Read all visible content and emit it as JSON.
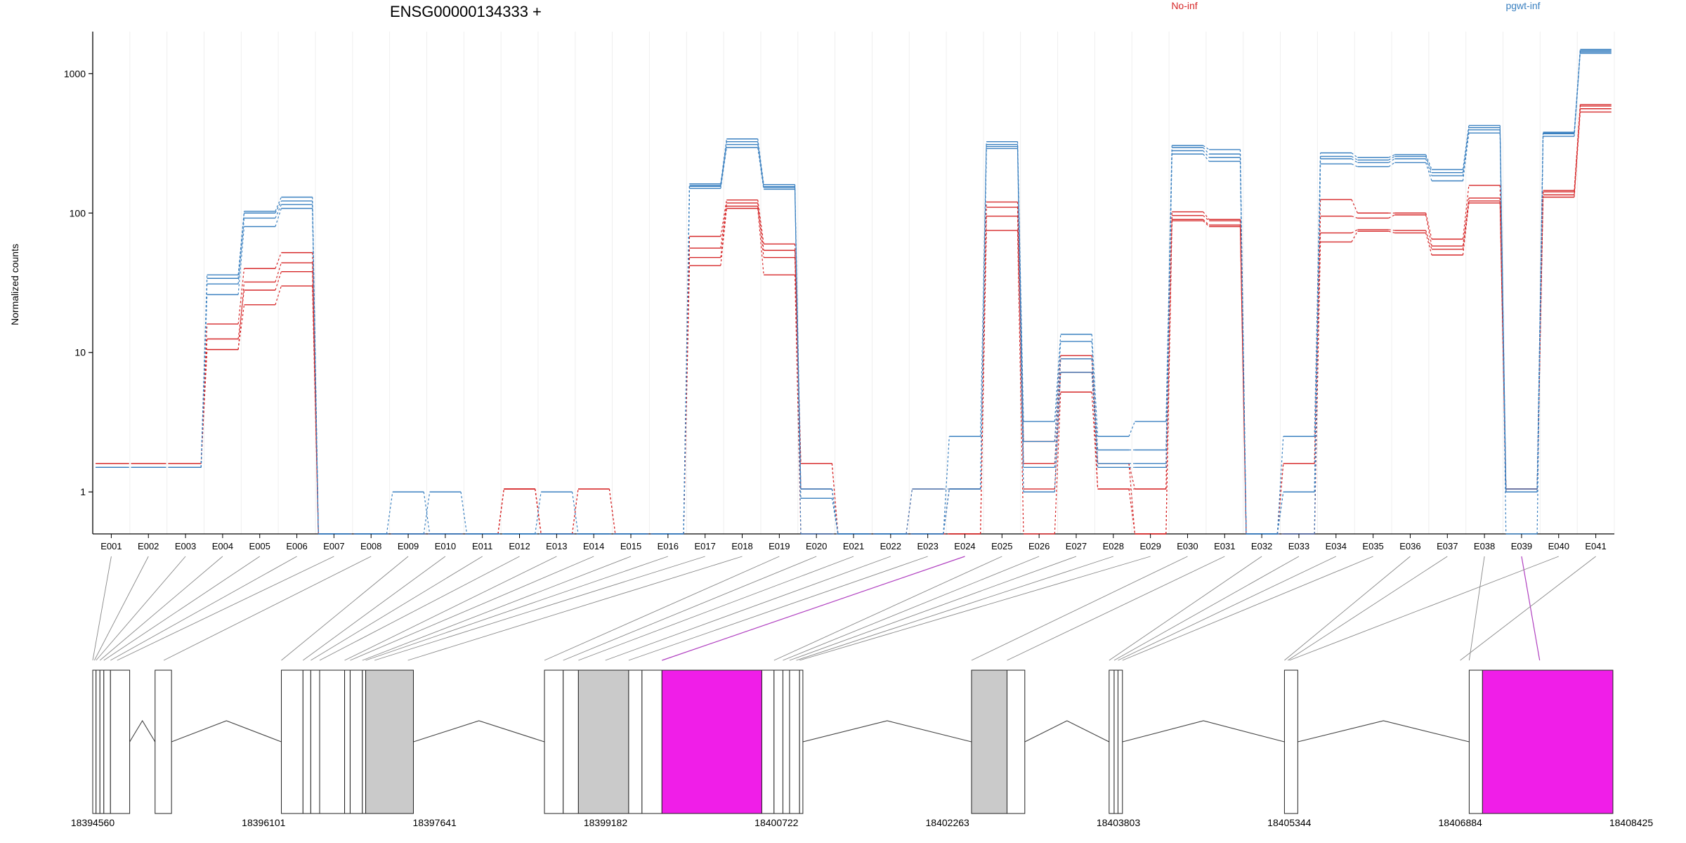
{
  "chart_data": {
    "type": "line",
    "title": "ENSG00000134333 +",
    "ylabel": "Normalized counts",
    "y_scale": "log",
    "y_ticks": [
      1,
      10,
      100,
      1000
    ],
    "ylim": [
      0.5,
      2000
    ],
    "legend_placement": "top",
    "categories": [
      "E001",
      "E002",
      "E003",
      "E004",
      "E005",
      "E006",
      "E007",
      "E008",
      "E009",
      "E010",
      "E011",
      "E012",
      "E013",
      "E014",
      "E015",
      "E016",
      "E017",
      "E018",
      "E019",
      "E020",
      "E021",
      "E022",
      "E023",
      "E024",
      "E025",
      "E026",
      "E027",
      "E028",
      "E029",
      "E030",
      "E031",
      "E032",
      "E033",
      "E034",
      "E035",
      "E036",
      "E037",
      "E038",
      "E039",
      "E040",
      "E041"
    ],
    "groups": [
      {
        "name": "No-inf",
        "color": "#d62728"
      },
      {
        "name": "pgwt-inf",
        "color": "#3a80c0"
      }
    ],
    "series": [
      {
        "group": "No-inf",
        "values": [
          1.6,
          1.6,
          1.6,
          10.5,
          22,
          30,
          0.5,
          0.5,
          0.5,
          0.5,
          0.5,
          1.05,
          0.5,
          0.5,
          0.5,
          0.5,
          42,
          108,
          36,
          0.5,
          0.5,
          0.5,
          0.5,
          0.5,
          75,
          0.5,
          5.2,
          1.05,
          0.5,
          88,
          80,
          0.5,
          0.5,
          62,
          74,
          72,
          50,
          118,
          1.0,
          130,
          530
        ]
      },
      {
        "group": "No-inf",
        "values": [
          1.6,
          1.6,
          1.6,
          12.5,
          28,
          38,
          0.5,
          0.5,
          0.5,
          0.5,
          0.5,
          1.05,
          0.5,
          0.5,
          0.5,
          0.5,
          48,
          112,
          48,
          1.6,
          0.5,
          0.5,
          0.5,
          0.5,
          95,
          1.05,
          7.2,
          1.6,
          0.5,
          90,
          82,
          0.5,
          0.5,
          72,
          76,
          75,
          55,
          122,
          1.05,
          135,
          560
        ]
      },
      {
        "group": "No-inf",
        "values": [
          1.6,
          1.6,
          1.6,
          10.5,
          32,
          44,
          0.5,
          0.5,
          0.5,
          0.5,
          0.5,
          1.05,
          0.5,
          1.05,
          0.5,
          0.5,
          56,
          118,
          54,
          1.05,
          0.5,
          0.5,
          1.05,
          1.05,
          110,
          1.6,
          9.0,
          1.05,
          1.05,
          96,
          88,
          0.5,
          1.6,
          95,
          92,
          97,
          58,
          128,
          1.05,
          142,
          585
        ]
      },
      {
        "group": "No-inf",
        "values": [
          1.6,
          1.6,
          1.6,
          16,
          40,
          52,
          0.5,
          0.5,
          0.5,
          0.5,
          0.5,
          1.05,
          0.5,
          1.05,
          0.5,
          0.5,
          68,
          124,
          60,
          1.6,
          0.5,
          0.5,
          0.5,
          1.05,
          120,
          2.3,
          9.5,
          1.6,
          1.05,
          102,
          90,
          0.5,
          1.6,
          125,
          100,
          100,
          65,
          158,
          1.05,
          145,
          600
        ]
      },
      {
        "group": "pgwt-inf",
        "values": [
          1.5,
          1.5,
          1.5,
          26,
          80,
          108,
          0.5,
          0.5,
          0.5,
          0.5,
          0.5,
          0.5,
          0.5,
          0.5,
          0.5,
          0.5,
          150,
          295,
          148,
          1.05,
          0.5,
          0.5,
          0.5,
          1.05,
          290,
          1.0,
          7.2,
          1.5,
          1.5,
          265,
          235,
          0.5,
          0.5,
          225,
          215,
          230,
          170,
          375,
          0.5,
          355,
          1400
        ]
      },
      {
        "group": "pgwt-inf",
        "values": [
          1.5,
          1.5,
          1.5,
          31,
          92,
          115,
          0.5,
          0.5,
          0.5,
          1.0,
          0.5,
          0.5,
          1.0,
          0.5,
          0.5,
          0.5,
          155,
          310,
          152,
          0.9,
          0.5,
          0.5,
          0.5,
          1.05,
          300,
          1.5,
          9.0,
          2.0,
          2.0,
          280,
          250,
          0.5,
          1.0,
          245,
          230,
          245,
          185,
          395,
          1.0,
          370,
          1430
        ]
      },
      {
        "group": "pgwt-inf",
        "values": [
          1.5,
          1.5,
          1.5,
          34,
          100,
          122,
          0.5,
          0.5,
          1.0,
          0.5,
          0.5,
          0.5,
          0.5,
          0.5,
          0.5,
          0.5,
          158,
          325,
          155,
          0.5,
          0.5,
          0.5,
          1.05,
          1.05,
          310,
          2.3,
          12.0,
          1.6,
          1.6,
          295,
          265,
          0.5,
          1.0,
          255,
          240,
          255,
          195,
          410,
          1.0,
          375,
          1460
        ]
      },
      {
        "group": "pgwt-inf",
        "values": [
          1.5,
          1.5,
          1.5,
          36,
          103,
          130,
          0.5,
          0.5,
          0.5,
          0.5,
          0.5,
          0.5,
          0.5,
          0.5,
          0.5,
          0.5,
          162,
          340,
          160,
          1.05,
          0.5,
          0.5,
          0.5,
          2.5,
          325,
          3.2,
          13.5,
          2.5,
          3.2,
          305,
          285,
          0.5,
          2.5,
          270,
          250,
          262,
          205,
          425,
          1.05,
          380,
          1490
        ]
      }
    ],
    "gene_model": {
      "coordinate_ticks": [
        18394560,
        18396101,
        18397641,
        18399182,
        18400722,
        18402263,
        18403803,
        18405344,
        18406884,
        18408425
      ],
      "exons": [
        {
          "start": 18394560,
          "end": 18394590,
          "highlight": false
        },
        {
          "start": 18394590,
          "end": 18394625,
          "highlight": false
        },
        {
          "start": 18394625,
          "end": 18394660,
          "highlight": false
        },
        {
          "start": 18394660,
          "end": 18394720,
          "highlight": false
        },
        {
          "start": 18394720,
          "end": 18394893,
          "highlight": false
        },
        {
          "start": 18395122,
          "end": 18395270,
          "highlight": false
        },
        {
          "start": 18396260,
          "end": 18396455,
          "highlight": false
        },
        {
          "start": 18396455,
          "end": 18396525,
          "highlight": false
        },
        {
          "start": 18396525,
          "end": 18396605,
          "highlight": false
        },
        {
          "start": 18396605,
          "end": 18396830,
          "highlight": false
        },
        {
          "start": 18396830,
          "end": 18396880,
          "highlight": false
        },
        {
          "start": 18396880,
          "end": 18396990,
          "highlight": false
        },
        {
          "start": 18396990,
          "end": 18397020,
          "highlight": false
        },
        {
          "start": 18397020,
          "end": 18397450,
          "highlight": false
        },
        {
          "start": 18398631,
          "end": 18398800,
          "highlight": false
        },
        {
          "start": 18398800,
          "end": 18398937,
          "highlight": false
        },
        {
          "start": 18398937,
          "end": 18399390,
          "highlight": false
        },
        {
          "start": 18399390,
          "end": 18399510,
          "highlight": false
        },
        {
          "start": 18399510,
          "end": 18399690,
          "highlight": false
        },
        {
          "start": 18399690,
          "end": 18400590,
          "highlight": true
        },
        {
          "start": 18400590,
          "end": 18400700,
          "highlight": false
        },
        {
          "start": 18400700,
          "end": 18400780,
          "highlight": false
        },
        {
          "start": 18400780,
          "end": 18400840,
          "highlight": false
        },
        {
          "start": 18400840,
          "end": 18400930,
          "highlight": false
        },
        {
          "start": 18400930,
          "end": 18400960,
          "highlight": false
        },
        {
          "start": 18402480,
          "end": 18402800,
          "highlight": false
        },
        {
          "start": 18402800,
          "end": 18402960,
          "highlight": false
        },
        {
          "start": 18403720,
          "end": 18403765,
          "highlight": false
        },
        {
          "start": 18403765,
          "end": 18403800,
          "highlight": false
        },
        {
          "start": 18403800,
          "end": 18403840,
          "highlight": false
        },
        {
          "start": 18405300,
          "end": 18405420,
          "highlight": false
        },
        {
          "start": 18406965,
          "end": 18407085,
          "highlight": false
        },
        {
          "start": 18407085,
          "end": 18408260,
          "highlight": true
        }
      ],
      "exon_labels_to_model_positions": [
        {
          "label": "E001",
          "pos": 18394560
        },
        {
          "label": "E002",
          "pos": 18394575
        },
        {
          "label": "E003",
          "pos": 18394590
        },
        {
          "label": "E004",
          "pos": 18394625
        },
        {
          "label": "E005",
          "pos": 18394660
        },
        {
          "label": "E006",
          "pos": 18394720
        },
        {
          "label": "E007",
          "pos": 18394780
        },
        {
          "label": "E008",
          "pos": 18395200
        },
        {
          "label": "E009",
          "pos": 18396260
        },
        {
          "label": "E010",
          "pos": 18396455
        },
        {
          "label": "E011",
          "pos": 18396525
        },
        {
          "label": "E012",
          "pos": 18396605
        },
        {
          "label": "E013",
          "pos": 18396830
        },
        {
          "label": "E014",
          "pos": 18396880
        },
        {
          "label": "E015",
          "pos": 18396990
        },
        {
          "label": "E016",
          "pos": 18397020
        },
        {
          "label": "E017",
          "pos": 18397100
        },
        {
          "label": "E018",
          "pos": 18397400
        },
        {
          "label": "E019",
          "pos": 18398631
        },
        {
          "label": "E020",
          "pos": 18398800
        },
        {
          "label": "E021",
          "pos": 18398937
        },
        {
          "label": "E022",
          "pos": 18399180
        },
        {
          "label": "E023",
          "pos": 18399390
        },
        {
          "label": "E024",
          "pos": 18399690
        },
        {
          "label": "E025",
          "pos": 18400700
        },
        {
          "label": "E026",
          "pos": 18400780
        },
        {
          "label": "E027",
          "pos": 18400840
        },
        {
          "label": "E028",
          "pos": 18400900
        },
        {
          "label": "E029",
          "pos": 18400930
        },
        {
          "label": "E030",
          "pos": 18402480
        },
        {
          "label": "E031",
          "pos": 18402800
        },
        {
          "label": "E032",
          "pos": 18403720
        },
        {
          "label": "E033",
          "pos": 18403765
        },
        {
          "label": "E034",
          "pos": 18403800
        },
        {
          "label": "E035",
          "pos": 18403840
        },
        {
          "label": "E036",
          "pos": 18405300
        },
        {
          "label": "E037",
          "pos": 18405330
        },
        {
          "label": "E038",
          "pos": 18406965
        },
        {
          "label": "E039",
          "pos": 18407600
        },
        {
          "label": "E040",
          "pos": 18405344
        },
        {
          "label": "E041",
          "pos": 18406884
        }
      ]
    }
  }
}
